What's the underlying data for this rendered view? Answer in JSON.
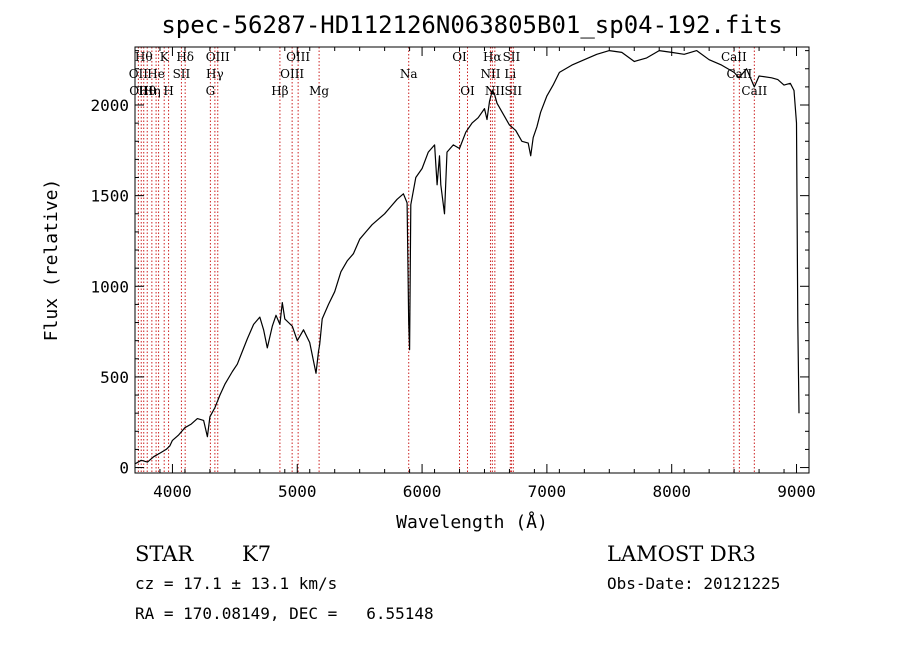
{
  "chart_data": {
    "type": "line",
    "title": "spec-56287-HD112126N063805B01_sp04-192.fits",
    "xlabel": "Wavelength (Å)",
    "ylabel": "Flux (relative)",
    "xlim": [
      3700,
      9100
    ],
    "ylim": [
      -30,
      2320
    ],
    "x_ticks": [
      4000,
      5000,
      6000,
      7000,
      8000,
      9000
    ],
    "y_ticks": [
      0,
      500,
      1000,
      1500,
      2000
    ],
    "series": [
      {
        "color": "#000000",
        "x": [
          3700,
          3750,
          3800,
          3850,
          3900,
          3950,
          3980,
          4000,
          4050,
          4100,
          4150,
          4200,
          4250,
          4280,
          4300,
          4340,
          4380,
          4420,
          4480,
          4520,
          4560,
          4600,
          4650,
          4700,
          4730,
          4760,
          4800,
          4830,
          4861,
          4880,
          4900,
          4930,
          4960,
          5000,
          5050,
          5100,
          5150,
          5170,
          5180,
          5200,
          5250,
          5300,
          5350,
          5400,
          5450,
          5500,
          5550,
          5600,
          5650,
          5700,
          5750,
          5800,
          5850,
          5880,
          5893,
          5900,
          5910,
          5950,
          6000,
          6050,
          6100,
          6120,
          6140,
          6150,
          6180,
          6200,
          6250,
          6300,
          6350,
          6400,
          6450,
          6500,
          6520,
          6540,
          6563,
          6580,
          6600,
          6650,
          6700,
          6750,
          6800,
          6850,
          6870,
          6890,
          6920,
          6950,
          7000,
          7050,
          7100,
          7200,
          7300,
          7400,
          7500,
          7600,
          7700,
          7800,
          7900,
          8000,
          8100,
          8200,
          8300,
          8400,
          8500,
          8540,
          8600,
          8662,
          8700,
          8800,
          8850,
          8900,
          8950,
          8980,
          9000,
          9010,
          9020
        ],
        "y": [
          20,
          40,
          30,
          60,
          80,
          100,
          120,
          150,
          180,
          220,
          240,
          270,
          260,
          170,
          280,
          330,
          400,
          460,
          530,
          570,
          640,
          710,
          790,
          830,
          760,
          660,
          780,
          840,
          790,
          910,
          820,
          800,
          780,
          700,
          760,
          690,
          520,
          640,
          680,
          820,
          900,
          970,
          1080,
          1140,
          1180,
          1260,
          1300,
          1340,
          1370,
          1400,
          1440,
          1480,
          1510,
          1460,
          800,
          650,
          1450,
          1600,
          1650,
          1740,
          1780,
          1560,
          1720,
          1560,
          1400,
          1740,
          1780,
          1760,
          1850,
          1900,
          1930,
          1980,
          1920,
          2020,
          2080,
          2060,
          2010,
          1950,
          1890,
          1860,
          1800,
          1790,
          1720,
          1820,
          1880,
          1960,
          2050,
          2110,
          2180,
          2220,
          2250,
          2280,
          2300,
          2290,
          2240,
          2260,
          2300,
          2290,
          2280,
          2300,
          2250,
          2220,
          2180,
          2150,
          2200,
          2100,
          2160,
          2150,
          2140,
          2110,
          2120,
          2080,
          1900,
          800,
          300
        ]
      }
    ],
    "line_markers": [
      {
        "x": 3727,
        "label": "OII",
        "row": 1
      },
      {
        "x": 3750,
        "label": "OIII",
        "row": 2
      },
      {
        "x": 3770,
        "label": "Hθ",
        "row": 0
      },
      {
        "x": 3798,
        "label": "Hθ",
        "row": 2
      },
      {
        "x": 3835,
        "label": "Hη",
        "row": 2
      },
      {
        "x": 3869,
        "label": "He",
        "row": 1
      },
      {
        "x": 3889,
        "label": "",
        "row": 0
      },
      {
        "x": 3934,
        "label": "K",
        "row": 0
      },
      {
        "x": 3969,
        "label": "H",
        "row": 2
      },
      {
        "x": 4072,
        "label": "SII",
        "row": 1
      },
      {
        "x": 4102,
        "label": "Hδ",
        "row": 0
      },
      {
        "x": 4304,
        "label": "G",
        "row": 2
      },
      {
        "x": 4340,
        "label": "Hγ",
        "row": 1
      },
      {
        "x": 4363,
        "label": "OIII",
        "row": 0
      },
      {
        "x": 4861,
        "label": "Hβ",
        "row": 2
      },
      {
        "x": 4959,
        "label": "OIII",
        "row": 1
      },
      {
        "x": 5007,
        "label": "OIII",
        "row": 0
      },
      {
        "x": 5175,
        "label": "Mg",
        "row": 2
      },
      {
        "x": 5893,
        "label": "Na",
        "row": 1
      },
      {
        "x": 6300,
        "label": "OI",
        "row": 0
      },
      {
        "x": 6364,
        "label": "OI",
        "row": 2
      },
      {
        "x": 6548,
        "label": "NII",
        "row": 1
      },
      {
        "x": 6563,
        "label": "Hα",
        "row": 0
      },
      {
        "x": 6583,
        "label": "NII",
        "row": 2
      },
      {
        "x": 6707,
        "label": "Li",
        "row": 1
      },
      {
        "x": 6716,
        "label": "SII",
        "row": 0
      },
      {
        "x": 6731,
        "label": "SII",
        "row": 2
      },
      {
        "x": 8498,
        "label": "CaII",
        "row": 0
      },
      {
        "x": 8542,
        "label": "CaII",
        "row": 1
      },
      {
        "x": 8662,
        "label": "CaII",
        "row": 2
      }
    ],
    "marker_color": "#cc2222"
  },
  "info": {
    "object_class": "STAR",
    "subclass": "K7",
    "survey": "LAMOST DR3",
    "cz_line": "cz = 17.1 ± 13.1 km/s",
    "obs_date_line": "Obs-Date: 20121225",
    "coords_line": "RA = 170.08149, DEC =   6.55148"
  }
}
